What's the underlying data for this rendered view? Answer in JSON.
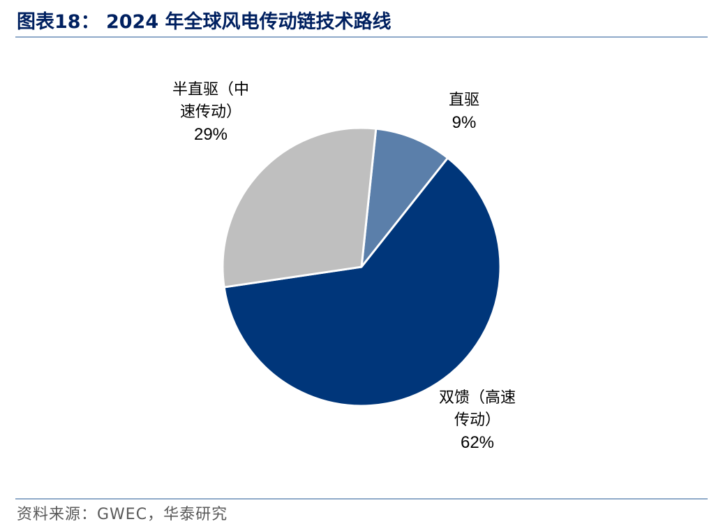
{
  "title": "图表18：  2024 年全球风电传动链技术路线",
  "source": "资料来源：GWEC，华泰研究",
  "colors": {
    "title": "#002060",
    "rule": "#8EA9C8",
    "slice_direct": "#5B7FAA",
    "slice_dfig": "#00367A",
    "slice_semi": "#BFBFBF"
  },
  "chart_data": {
    "type": "pie",
    "slices": [
      {
        "name": "直驱",
        "label_lines": [
          "直驱"
        ],
        "value": 9,
        "value_label": "9%",
        "color": "#5B7FAA"
      },
      {
        "name": "双馈（高速传动）",
        "label_lines": [
          "双馈（高速",
          "传动）"
        ],
        "value": 62,
        "value_label": "62%",
        "color": "#00367A"
      },
      {
        "name": "半直驱（中速传动）",
        "label_lines": [
          "半直驱（中",
          "速传动）"
        ],
        "value": 29,
        "value_label": "29%",
        "color": "#BFBFBF"
      }
    ]
  }
}
